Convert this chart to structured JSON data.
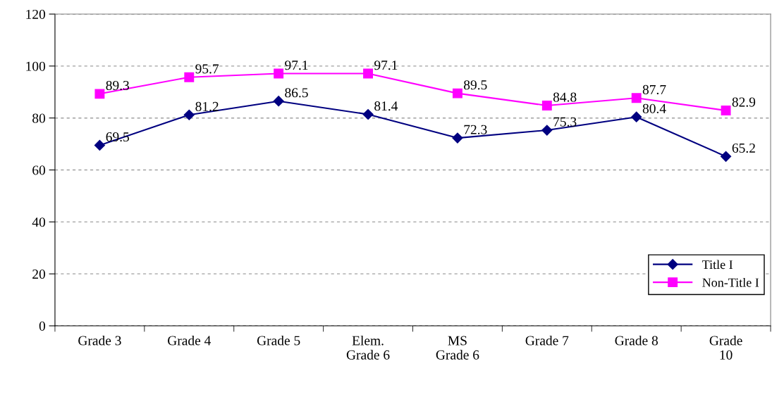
{
  "chart_data": {
    "type": "line",
    "categories": [
      "Grade 3",
      "Grade 4",
      "Grade 5",
      "Elem.\nGrade 6",
      "MS\nGrade 6",
      "Grade 7",
      "Grade 8",
      "Grade\n10"
    ],
    "series": [
      {
        "name": "Title I",
        "color": "#000080",
        "marker": "diamond",
        "values": [
          69.5,
          81.2,
          86.5,
          81.4,
          72.3,
          75.3,
          80.4,
          65.2
        ]
      },
      {
        "name": "Non-Title I",
        "color": "#ff00ff",
        "marker": "square",
        "values": [
          89.3,
          95.7,
          97.1,
          97.1,
          89.5,
          84.8,
          87.7,
          82.9
        ]
      }
    ],
    "ylim": [
      0,
      120
    ],
    "yticks": [
      0,
      20,
      40,
      60,
      80,
      100,
      120
    ],
    "grid": "y",
    "legend": "bottom right",
    "data_labels": true,
    "line_style": "solid"
  }
}
